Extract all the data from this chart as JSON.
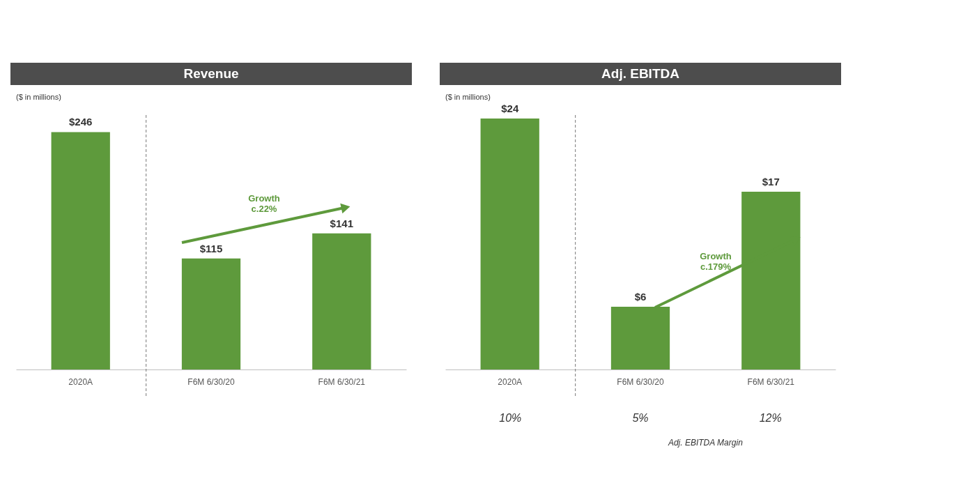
{
  "chart_data": [
    {
      "type": "bar",
      "title": "Revenue",
      "subtitle": "($ in millions)",
      "categories": [
        "2020A",
        "F6M 6/30/20",
        "F6M 6/30/21"
      ],
      "values": [
        246,
        115,
        141
      ],
      "value_labels": [
        "$246",
        "$115",
        "$141"
      ],
      "color": "#5e9a3c",
      "grid": false,
      "annotations": [
        "Growth c.22%"
      ]
    },
    {
      "type": "bar",
      "title": "Adj. EBITDA",
      "subtitle": "($ in millions)",
      "categories": [
        "2020A",
        "F6M 6/30/20",
        "F6M 6/30/21"
      ],
      "values": [
        24,
        6,
        17
      ],
      "value_labels": [
        "$24",
        "$6",
        "$17"
      ],
      "color": "#5e9a3c",
      "grid": false,
      "annotations": [
        "Growth c.179%",
        "10%",
        "5%",
        "12%",
        "Adj. EBITDA Margin"
      ]
    }
  ]
}
